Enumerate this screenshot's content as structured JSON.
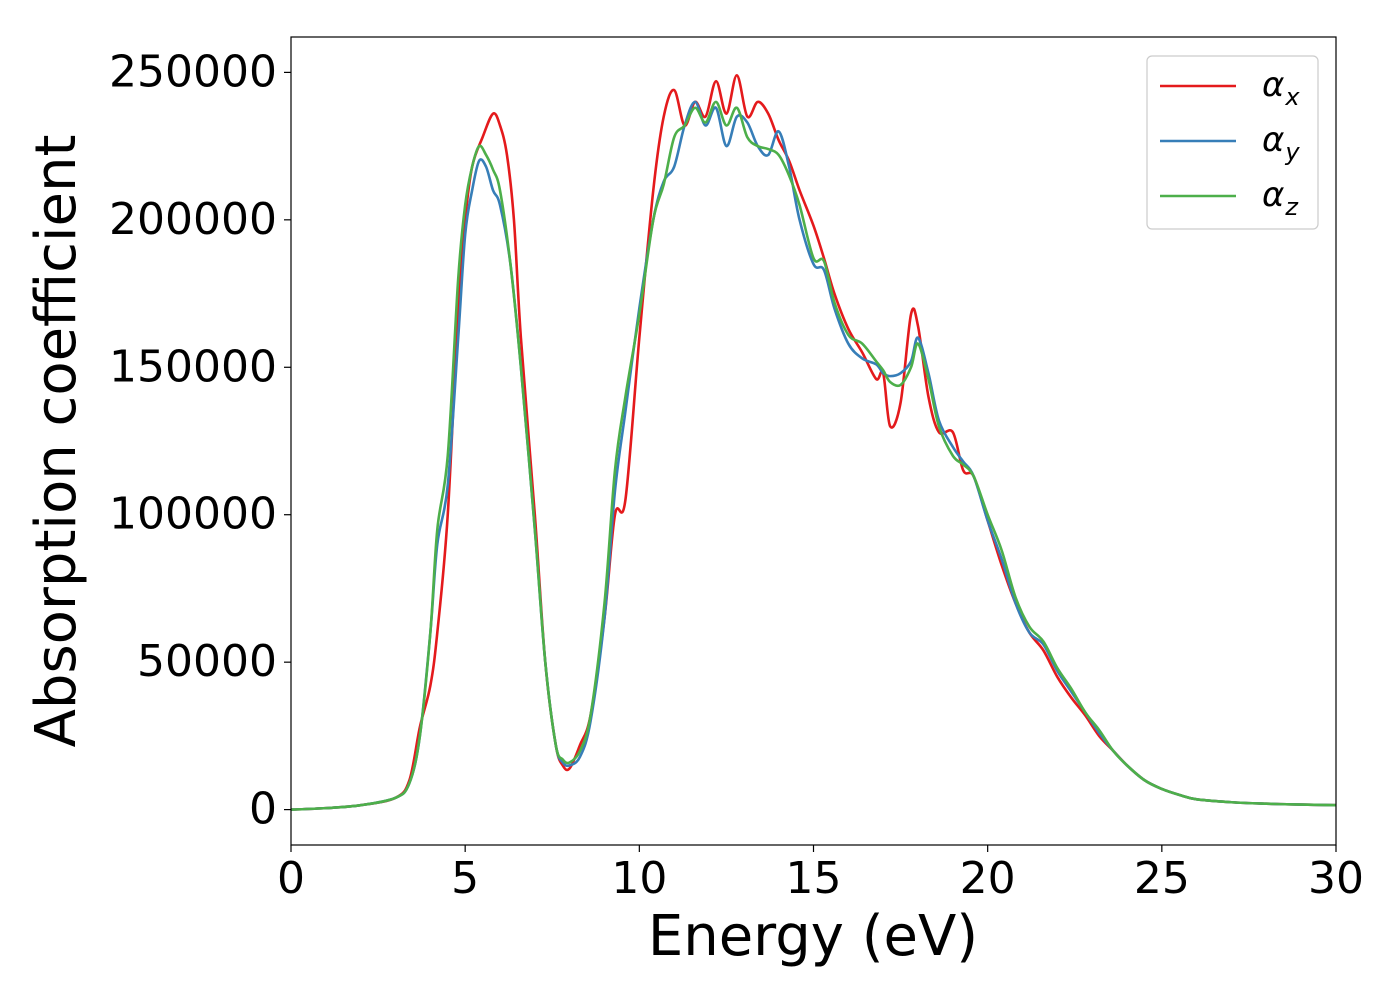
{
  "chart_data": {
    "type": "line",
    "title": "",
    "xlabel": "Energy (eV)",
    "ylabel": "Absorption coefficient",
    "xlim": [
      0,
      30
    ],
    "ylim": [
      -12000,
      262000
    ],
    "xticks": [
      0,
      5,
      10,
      15,
      20,
      25,
      30
    ],
    "xtick_labels": [
      "0",
      "5",
      "10",
      "15",
      "20",
      "25",
      "30"
    ],
    "yticks": [
      0,
      50000,
      100000,
      150000,
      200000,
      250000
    ],
    "ytick_labels": [
      "0",
      "50000",
      "100000",
      "150000",
      "200000",
      "250000"
    ],
    "grid": false,
    "legend_position": "top-right",
    "series": [
      {
        "name": "α_x",
        "label_base": "α",
        "label_sub": "x",
        "color": "#e41a1c",
        "x": [
          0,
          1,
          2,
          3,
          3.4,
          3.7,
          4.0,
          4.2,
          4.5,
          4.8,
          5.0,
          5.2,
          5.5,
          5.8,
          6.0,
          6.2,
          6.4,
          6.6,
          7.0,
          7.3,
          7.6,
          7.8,
          8.0,
          8.3,
          8.6,
          9.0,
          9.3,
          9.6,
          10.0,
          10.4,
          10.7,
          11.0,
          11.3,
          11.6,
          11.9,
          12.2,
          12.5,
          12.8,
          13.1,
          13.4,
          13.7,
          14.0,
          14.3,
          14.6,
          15.0,
          15.3,
          15.6,
          16.0,
          16.4,
          16.8,
          17.0,
          17.2,
          17.5,
          17.8,
          18.0,
          18.3,
          18.6,
          19.0,
          19.3,
          19.6,
          20.0,
          20.4,
          20.8,
          21.2,
          21.6,
          22.0,
          22.4,
          22.8,
          23.2,
          23.6,
          24.0,
          24.5,
          25.0,
          25.5,
          26,
          27,
          28,
          29,
          30
        ],
        "y": [
          0,
          500,
          1500,
          4000,
          10000,
          28000,
          42000,
          60000,
          100000,
          170000,
          200000,
          218000,
          228000,
          236000,
          232000,
          222000,
          200000,
          160000,
          100000,
          50000,
          22000,
          15000,
          14000,
          22000,
          32000,
          65000,
          100000,
          105000,
          160000,
          210000,
          235000,
          244000,
          232000,
          240000,
          235000,
          247000,
          236000,
          249000,
          235000,
          240000,
          236000,
          227000,
          220000,
          210000,
          198000,
          187000,
          175000,
          163000,
          155000,
          146000,
          148000,
          130000,
          138000,
          168000,
          164000,
          140000,
          128000,
          128000,
          115000,
          113000,
          98000,
          83000,
          70000,
          60000,
          54000,
          45000,
          38000,
          32000,
          25000,
          20000,
          15000,
          10000,
          7000,
          5000,
          3500,
          2500,
          2000,
          1700,
          1500
        ]
      },
      {
        "name": "α_y",
        "label_base": "α",
        "label_sub": "y",
        "color": "#377eb8",
        "x": [
          0,
          1,
          2,
          3,
          3.4,
          3.7,
          4.0,
          4.2,
          4.5,
          4.8,
          5.0,
          5.2,
          5.4,
          5.6,
          5.8,
          6.0,
          6.3,
          6.6,
          7.0,
          7.3,
          7.6,
          7.8,
          8.0,
          8.3,
          8.6,
          9.0,
          9.3,
          9.6,
          10.0,
          10.4,
          10.7,
          11.0,
          11.3,
          11.6,
          11.9,
          12.2,
          12.5,
          12.8,
          13.1,
          13.4,
          13.7,
          14.0,
          14.3,
          14.6,
          15.0,
          15.3,
          15.6,
          16.0,
          16.4,
          16.8,
          17.0,
          17.2,
          17.5,
          17.8,
          18.0,
          18.3,
          18.6,
          19.0,
          19.3,
          19.6,
          20.0,
          20.4,
          20.8,
          21.2,
          21.6,
          22.0,
          22.4,
          22.8,
          23.2,
          23.6,
          24.0,
          24.5,
          25.0,
          25.5,
          26,
          27,
          28,
          29,
          30
        ],
        "y": [
          0,
          500,
          1500,
          4000,
          9000,
          25000,
          60000,
          90000,
          110000,
          160000,
          195000,
          210000,
          220000,
          218000,
          210000,
          205000,
          185000,
          150000,
          95000,
          50000,
          22000,
          16000,
          15000,
          18000,
          30000,
          65000,
          108000,
          135000,
          170000,
          200000,
          213000,
          218000,
          232000,
          240000,
          232000,
          238000,
          225000,
          235000,
          233000,
          225000,
          222000,
          230000,
          218000,
          200000,
          185000,
          183000,
          170000,
          158000,
          153000,
          151000,
          148000,
          147000,
          148000,
          152000,
          160000,
          148000,
          132000,
          123000,
          118000,
          113000,
          98000,
          85000,
          70000,
          60000,
          56000,
          47000,
          40000,
          33000,
          26000,
          20000,
          15000,
          10000,
          7000,
          5000,
          3500,
          2500,
          2000,
          1700,
          1500
        ]
      },
      {
        "name": "α_z",
        "label_base": "α",
        "label_sub": "z",
        "color": "#4daf4a",
        "x": [
          0,
          1,
          2,
          3,
          3.4,
          3.7,
          4.0,
          4.2,
          4.5,
          4.8,
          5.0,
          5.2,
          5.4,
          5.6,
          5.8,
          6.0,
          6.3,
          6.6,
          7.0,
          7.3,
          7.6,
          7.8,
          8.0,
          8.3,
          8.6,
          9.0,
          9.3,
          9.6,
          10.0,
          10.4,
          10.7,
          11.0,
          11.3,
          11.6,
          11.9,
          12.2,
          12.5,
          12.8,
          13.1,
          13.4,
          13.7,
          14.0,
          14.3,
          14.6,
          15.0,
          15.3,
          15.6,
          16.0,
          16.4,
          16.8,
          17.0,
          17.2,
          17.5,
          17.8,
          18.0,
          18.3,
          18.6,
          19.0,
          19.3,
          19.6,
          20.0,
          20.4,
          20.8,
          21.2,
          21.6,
          22.0,
          22.4,
          22.8,
          23.2,
          23.6,
          24.0,
          24.5,
          25.0,
          25.5,
          26,
          27,
          28,
          29,
          30
        ],
        "y": [
          0,
          500,
          1500,
          4000,
          9000,
          25000,
          60000,
          95000,
          120000,
          180000,
          205000,
          218000,
          225000,
          222000,
          217000,
          210000,
          185000,
          150000,
          95000,
          50000,
          22000,
          17000,
          16000,
          20000,
          32000,
          70000,
          115000,
          140000,
          168000,
          200000,
          212000,
          228000,
          232000,
          238000,
          233000,
          240000,
          232000,
          238000,
          228000,
          225000,
          224000,
          222000,
          215000,
          205000,
          187000,
          186000,
          172000,
          161000,
          158000,
          152000,
          149000,
          145000,
          144000,
          150000,
          158000,
          146000,
          130000,
          120000,
          117000,
          113000,
          100000,
          88000,
          72000,
          62000,
          57000,
          48000,
          41000,
          33000,
          27000,
          20000,
          15000,
          10000,
          7000,
          5000,
          3500,
          2500,
          2000,
          1700,
          1500
        ]
      }
    ]
  }
}
